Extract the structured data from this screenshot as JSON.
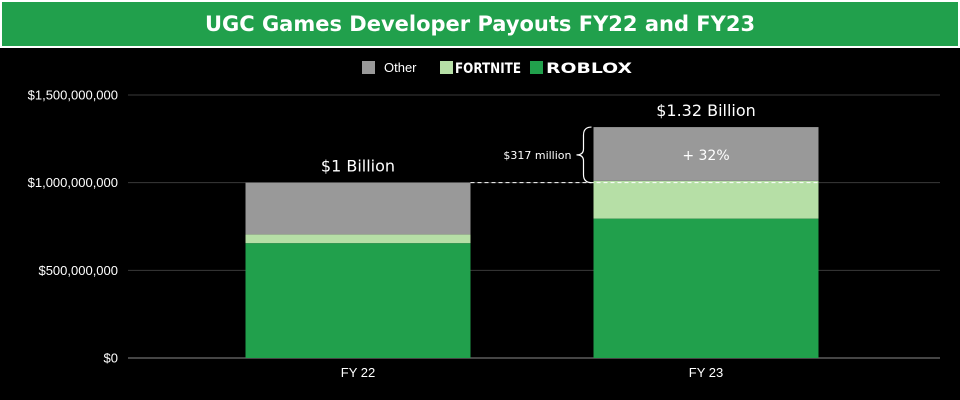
{
  "chart_data": {
    "type": "bar",
    "stacked": true,
    "title": "UGC Games Developer Payouts FY22 and FY23",
    "categories": [
      "FY 22",
      "FY 23"
    ],
    "series": [
      {
        "name": "ROBLOX",
        "values": [
          655000000,
          795000000
        ],
        "color": "#21a04c"
      },
      {
        "name": "FORTNITE",
        "values": [
          50000000,
          215000000
        ],
        "color": "#b6dfa6"
      },
      {
        "name": "Other",
        "values": [
          295000000,
          307000000
        ],
        "color": "#999999"
      }
    ],
    "totals": [
      "$1 Billion",
      "$1.32 Billion"
    ],
    "ylim": [
      0,
      1500000000
    ],
    "yticks": [
      {
        "value": 0,
        "label": "$0"
      },
      {
        "value": 500000000,
        "label": "$500,000,000"
      },
      {
        "value": 1000000000,
        "label": "$1,000,000,000"
      },
      {
        "value": 1500000000,
        "label": "$1,500,000,000"
      }
    ],
    "grid": true,
    "legend_position": "top",
    "annotations": {
      "difference_label": "$317 million",
      "growth_label": "+ 32%",
      "reference_value": 1000000000
    }
  }
}
